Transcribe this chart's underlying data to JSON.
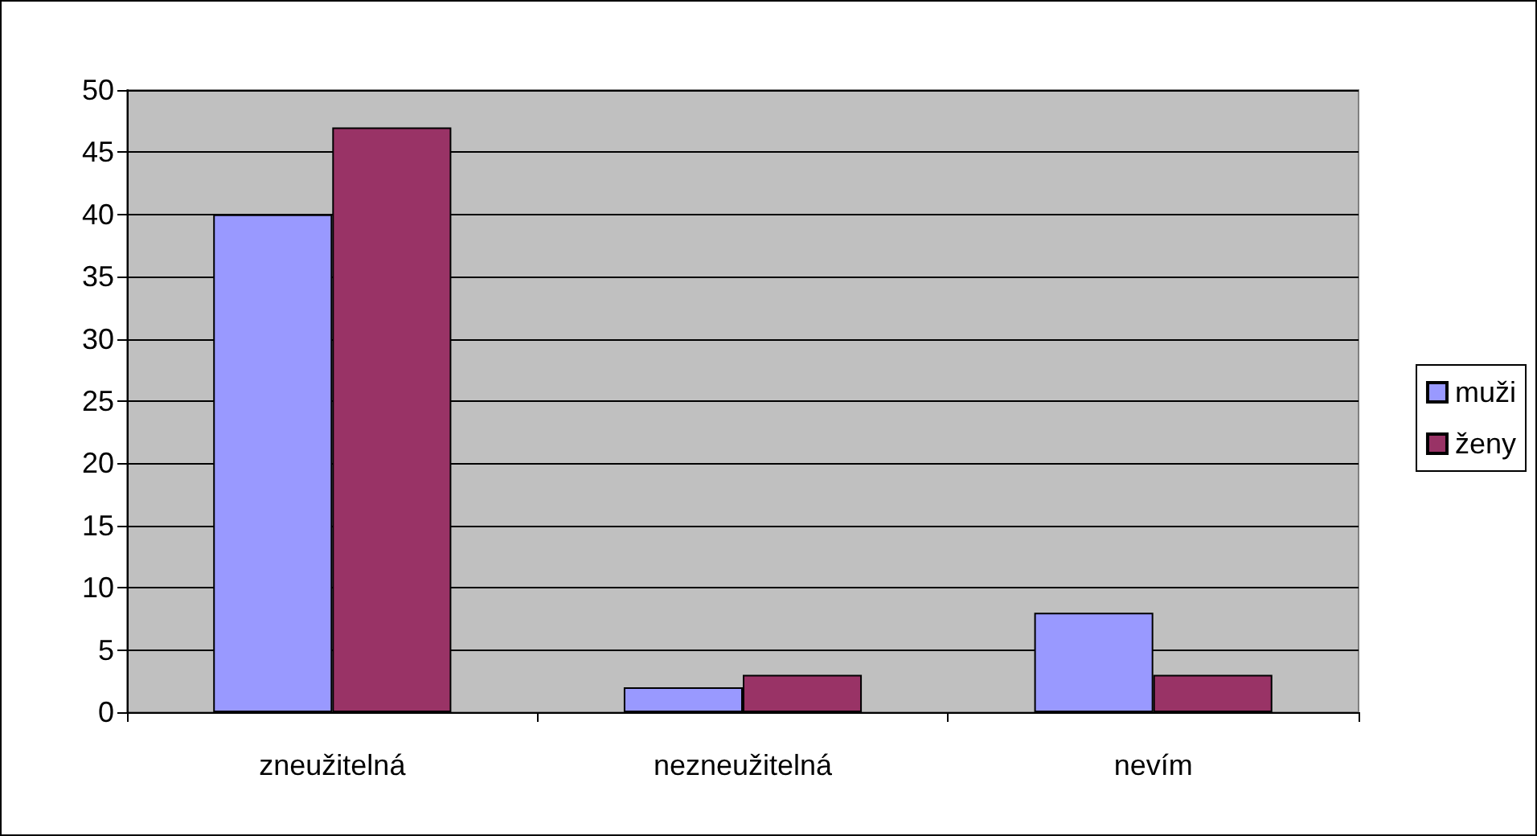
{
  "chart_data": {
    "type": "bar",
    "categories": [
      "zneužitelná",
      "nezneužitelná",
      "nevím"
    ],
    "series": [
      {
        "name": "muži",
        "color": "#9999ff",
        "values": [
          40,
          2,
          8
        ]
      },
      {
        "name": "ženy",
        "color": "#993366",
        "values": [
          47,
          3,
          3
        ]
      }
    ],
    "ylim": [
      0,
      50
    ],
    "yticks": [
      0,
      5,
      10,
      15,
      20,
      25,
      30,
      35,
      40,
      45,
      50
    ],
    "grid": "y",
    "legend": "right"
  }
}
